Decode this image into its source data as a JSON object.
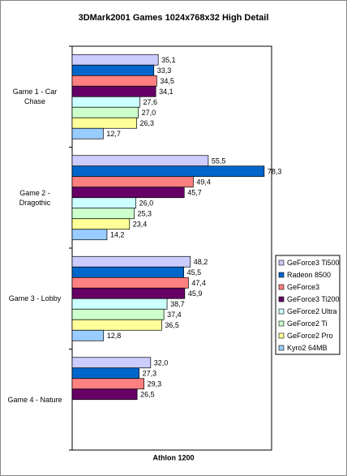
{
  "chart_data": {
    "type": "hbar",
    "title": "3DMark2001 Games 1024x768x32 High Detail",
    "x_label": "Athlon 1200",
    "categories": [
      "Game 1 - Car Chase",
      "Game 2 - Dragothic",
      "Game 3 - Lobby",
      "Game 4 - Nature"
    ],
    "xlim": [
      0,
      80
    ],
    "legend": "right",
    "series": [
      {
        "name": "GeForce3 Ti500",
        "color": "#ccccff",
        "values": [
          35.1,
          55.5,
          48.2,
          32.0
        ],
        "value_labels": [
          "35,1",
          "55,5",
          "48,2",
          "32,0"
        ]
      },
      {
        "name": "Radeon 8500",
        "color": "#0066cc",
        "values": [
          33.3,
          78.3,
          45.5,
          27.3
        ],
        "value_labels": [
          "33,3",
          "78,3",
          "45,5",
          "27,3"
        ]
      },
      {
        "name": "GeForce3",
        "color": "#ff8080",
        "values": [
          34.5,
          49.4,
          47.4,
          29.3
        ],
        "value_labels": [
          "34,5",
          "49,4",
          "47,4",
          "29,3"
        ]
      },
      {
        "name": "GeForce3 Ti200",
        "color": "#660066",
        "values": [
          34.1,
          45.7,
          45.9,
          26.5
        ],
        "value_labels": [
          "34,1",
          "45,7",
          "45,9",
          "26,5"
        ]
      },
      {
        "name": "GeForce2 Ultra",
        "color": "#ccffff",
        "values": [
          27.6,
          26.0,
          38.7,
          null
        ],
        "value_labels": [
          "27,6",
          "26,0",
          "38,7",
          null
        ]
      },
      {
        "name": "GeForce2 Ti",
        "color": "#ccffcc",
        "values": [
          27.0,
          25.3,
          37.4,
          null
        ],
        "value_labels": [
          "27,0",
          "25,3",
          "37,4",
          null
        ]
      },
      {
        "name": "GeForce2 Pro",
        "color": "#ffff99",
        "values": [
          26.3,
          23.4,
          36.5,
          null
        ],
        "value_labels": [
          "26,3",
          "23,4",
          "36,5",
          null
        ]
      },
      {
        "name": "Kyro2 64MB",
        "color": "#99ccff",
        "values": [
          12.7,
          14.2,
          12.8,
          null
        ],
        "value_labels": [
          "12,7",
          "14,2",
          "12,8",
          null
        ]
      }
    ]
  }
}
